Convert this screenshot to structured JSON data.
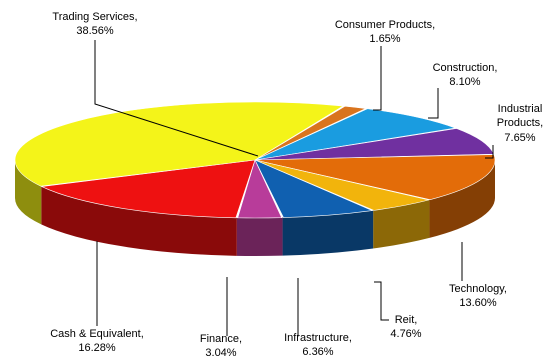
{
  "chart_data": {
    "type": "pie",
    "title": "",
    "slices": [
      {
        "label": "Consumer Products,",
        "pct_text": "1.65%",
        "value": 1.65,
        "color": "#D9741E"
      },
      {
        "label": "Construction,",
        "pct_text": "8.10%",
        "value": 8.1,
        "color": "#1A9CE0"
      },
      {
        "label": "Industrial Products,",
        "pct_text": "7.65%",
        "value": 7.65,
        "color": "#7030A0"
      },
      {
        "label": "Technology,",
        "pct_text": "13.60%",
        "value": 13.6,
        "color": "#E36C09"
      },
      {
        "label": "Reit,",
        "pct_text": "4.76%",
        "value": 4.76,
        "color": "#F2B40C"
      },
      {
        "label": "Infrastructure,",
        "pct_text": "6.36%",
        "value": 6.36,
        "color": "#1060B0"
      },
      {
        "label": "Finance,",
        "pct_text": "3.04%",
        "value": 3.04,
        "color": "#B83C9A"
      },
      {
        "label": "Cash & Equivalent,",
        "pct_text": "16.28%",
        "value": 16.28,
        "color": "#EE1111"
      },
      {
        "label": "Trading Services,",
        "pct_text": "38.56%",
        "value": 38.56,
        "color": "#F4F419"
      }
    ]
  }
}
